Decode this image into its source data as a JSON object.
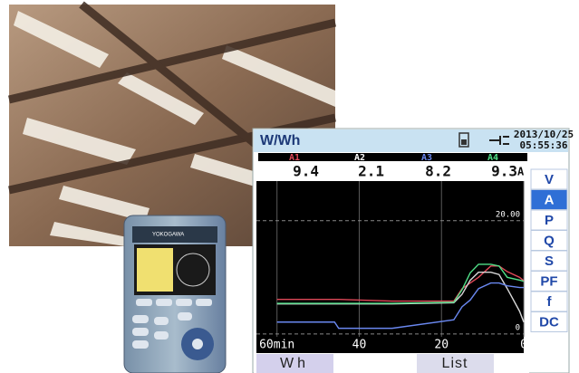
{
  "device": {
    "brand": "YOKOGAWA"
  },
  "screen": {
    "title": "W/Wh",
    "date": "2013/10/25",
    "time": "05:55:36",
    "unit": "A",
    "readings": [
      9.4,
      2.1,
      8.2,
      9.3
    ],
    "menu": [
      "V",
      "A",
      "P",
      "Q",
      "S",
      "PF",
      "f",
      "DC"
    ],
    "selected_menu": 1,
    "buttons": [
      "Wh",
      "List"
    ]
  },
  "chart_data": {
    "type": "line",
    "x": [
      60,
      46,
      45,
      32,
      17,
      15,
      13,
      11,
      8,
      6,
      4,
      1,
      0
    ],
    "series": [
      {
        "name": "A1",
        "color": "#e04858",
        "values": [
          6.1,
          6.1,
          6.1,
          5.8,
          5.8,
          8,
          9,
          10,
          12,
          12,
          11,
          10,
          9.4
        ]
      },
      {
        "name": "A2",
        "color": "#d8d8d8",
        "values": [
          5.3,
          5.3,
          5.3,
          5.3,
          5.5,
          7,
          9.5,
          10.9,
          10.9,
          10.5,
          8,
          4,
          2.1
        ]
      },
      {
        "name": "A3",
        "color": "#6a88f0",
        "values": [
          2.1,
          2.1,
          1,
          1,
          2.5,
          4.8,
          6,
          8,
          9,
          9,
          8.5,
          8.2,
          8.2
        ]
      },
      {
        "name": "A4",
        "color": "#50e088",
        "values": [
          5.4,
          5.4,
          5.4,
          5.4,
          5.6,
          7.8,
          10.8,
          12.3,
          12.3,
          12,
          10,
          9.5,
          9.3
        ]
      }
    ],
    "xlim": [
      65,
      0
    ],
    "xticks": [
      {
        "value": 60,
        "label": "60min"
      },
      40,
      20,
      0
    ],
    "ylim": [
      -0.5,
      27
    ],
    "yticks": [
      0,
      {
        "value": 20,
        "label": "20.00"
      }
    ],
    "grid": true
  }
}
